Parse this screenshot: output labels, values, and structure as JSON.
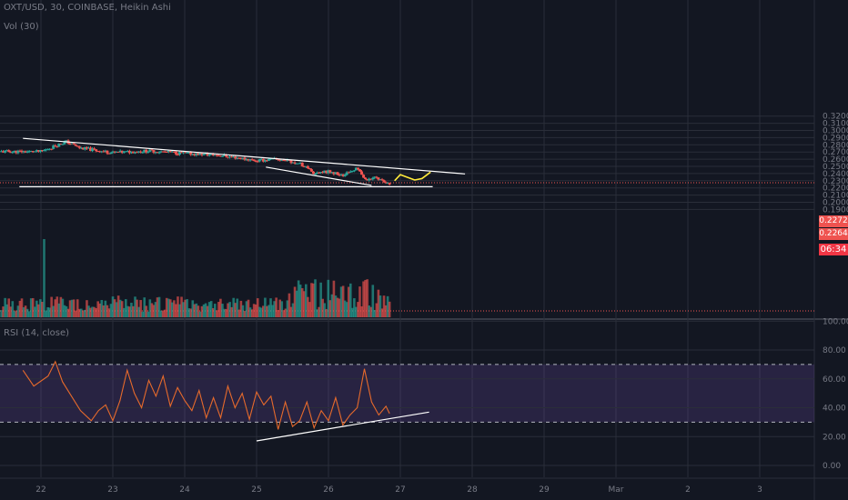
{
  "header": {
    "title": "OXT/USD, 30, COINBASE, Heikin Ashi",
    "volume_label": "Vol (30)",
    "rsi_label": "RSI (14, close)"
  },
  "price_tags": {
    "last_price": "0.2272",
    "prev_price": "0.2264",
    "countdown": "06:34"
  },
  "colors": {
    "background": "#131722",
    "grid": "#2a2e39",
    "up": "#26a69a",
    "down": "#ef5350",
    "rsi_line": "#e66a2c",
    "rsi_band": "#7e57c2",
    "trendline": "#ffffff",
    "projection": "#ffeb3b"
  },
  "chart_data": [
    {
      "type": "candlestick",
      "title": "OXT/USD, 30, COINBASE, Heikin Ashi",
      "x_ticks": [
        "22",
        "23",
        "24",
        "25",
        "26",
        "27",
        "28",
        "29",
        "Mar",
        "2",
        "3"
      ],
      "y_ticks": [
        "0.3200",
        "0.3100",
        "0.3000",
        "0.2900",
        "0.2800",
        "0.2700",
        "0.2600",
        "0.2500",
        "0.2400",
        "0.2300",
        "0.2200",
        "0.2100",
        "0.2000",
        "0.1900"
      ],
      "ylim": [
        0.1865,
        0.3215
      ],
      "grid": true,
      "last_price": 0.2272,
      "trend_shape": [
        {
          "x": 0.0,
          "y": 0.2705
        },
        {
          "x": 0.35,
          "y": 0.2845
        },
        {
          "x": 0.55,
          "y": 0.2755
        },
        {
          "x": 1.0,
          "y": 0.269
        },
        {
          "x": 1.5,
          "y": 0.2715
        },
        {
          "x": 2.0,
          "y": 0.268
        },
        {
          "x": 2.5,
          "y": 0.2655
        },
        {
          "x": 3.0,
          "y": 0.258
        },
        {
          "x": 3.3,
          "y": 0.26
        },
        {
          "x": 3.6,
          "y": 0.254
        },
        {
          "x": 3.8,
          "y": 0.24
        },
        {
          "x": 4.0,
          "y": 0.243
        },
        {
          "x": 4.2,
          "y": 0.237
        },
        {
          "x": 4.4,
          "y": 0.247
        },
        {
          "x": 4.52,
          "y": 0.231
        },
        {
          "x": 4.65,
          "y": 0.235
        },
        {
          "x": 4.8,
          "y": 0.228
        },
        {
          "x": 4.85,
          "y": 0.2272
        }
      ],
      "annotations": [
        {
          "kind": "descending-trendline",
          "from": {
            "x": -0.25,
            "y": 0.289
          },
          "to": {
            "x": 5.9,
            "y": 0.2395
          }
        },
        {
          "kind": "wedge-support-line",
          "from": {
            "x": 3.13,
            "y": 0.249
          },
          "to": {
            "x": 4.6,
            "y": 0.2235
          }
        },
        {
          "kind": "horizontal-support",
          "from": {
            "x": -0.3,
            "y": 0.2217
          },
          "to": {
            "x": 5.45,
            "y": 0.2217
          }
        },
        {
          "kind": "projection-path",
          "points": [
            {
              "x": 4.92,
              "y": 0.23
            },
            {
              "x": 5.0,
              "y": 0.2385
            },
            {
              "x": 5.08,
              "y": 0.2355
            },
            {
              "x": 5.2,
              "y": 0.231
            },
            {
              "x": 5.3,
              "y": 0.233
            },
            {
              "x": 5.42,
              "y": 0.242
            }
          ]
        }
      ]
    },
    {
      "type": "bar",
      "title": "Vol (30)",
      "notable_spike_x": 0.05
    },
    {
      "type": "line",
      "title": "RSI (14, close)",
      "y_ticks": [
        "100.00",
        "80.00",
        "60.00",
        "40.00",
        "20.00",
        "0.00"
      ],
      "ylim": [
        -6,
        100
      ],
      "bands": [
        30,
        70
      ],
      "series": [
        {
          "values_x": [
            -0.25,
            -0.1,
            0.1,
            0.2,
            0.3,
            0.4,
            0.55,
            0.7,
            0.8,
            0.9,
            1.0,
            1.1,
            1.2,
            1.3,
            1.4,
            1.5,
            1.6,
            1.7,
            1.8,
            1.9,
            2.0,
            2.1,
            2.2,
            2.3,
            2.4,
            2.5,
            2.6,
            2.7,
            2.8,
            2.9,
            3.0,
            3.1,
            3.2,
            3.3,
            3.4,
            3.5,
            3.6,
            3.7,
            3.8,
            3.9,
            4.0,
            4.1,
            4.2,
            4.3,
            4.4,
            4.5,
            4.6,
            4.7,
            4.8,
            4.85
          ],
          "values": [
            66,
            55,
            62,
            72,
            58,
            50,
            38,
            31,
            38,
            42,
            31,
            45,
            66,
            50,
            40,
            59,
            48,
            62,
            41,
            54,
            45,
            38,
            52,
            33,
            47,
            33,
            55,
            40,
            50,
            32,
            51,
            42,
            48,
            25,
            44,
            27,
            31,
            44,
            26,
            38,
            31,
            47,
            28,
            35,
            40,
            67,
            44,
            35,
            41,
            36
          ]
        }
      ],
      "annotations": [
        {
          "kind": "rising-support-line",
          "from": {
            "x": 3.0,
            "y": 17
          },
          "to": {
            "x": 5.4,
            "y": 37
          }
        }
      ]
    }
  ]
}
